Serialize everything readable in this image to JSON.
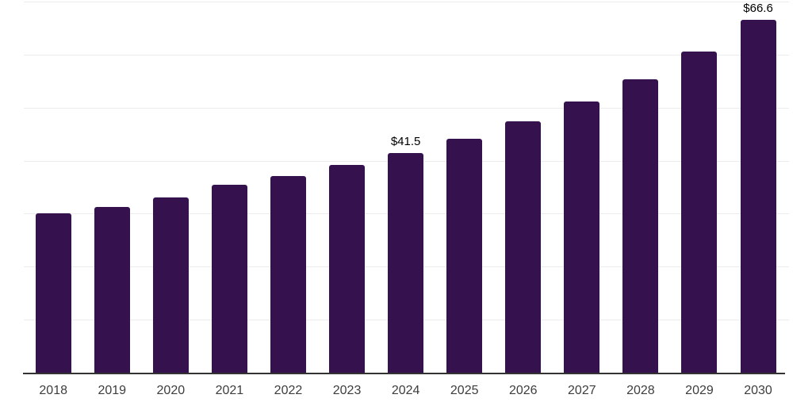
{
  "chart_data": {
    "type": "bar",
    "title": "",
    "xlabel": "",
    "ylabel": "",
    "categories": [
      "2018",
      "2019",
      "2020",
      "2021",
      "2022",
      "2023",
      "2024",
      "2025",
      "2026",
      "2027",
      "2028",
      "2029",
      "2030"
    ],
    "values": [
      30.1,
      31.2,
      33.1,
      35.4,
      37.1,
      39.2,
      41.5,
      44.1,
      47.4,
      51.1,
      55.4,
      60.6,
      66.6
    ],
    "labeled_points": [
      {
        "category": "2024",
        "label": "$41.5"
      },
      {
        "category": "2030",
        "label": "$66.6"
      }
    ],
    "ylim": [
      0,
      70
    ],
    "gridline_step": 10,
    "grid": "horizontal",
    "y_axis_labels_visible": false,
    "legend": "none",
    "colors": {
      "bar": "#35114e",
      "gridline": "#ececec",
      "axis": "#333333",
      "tick_label": "#3d3d3d",
      "value_label": "#000000",
      "background": "#ffffff"
    }
  }
}
